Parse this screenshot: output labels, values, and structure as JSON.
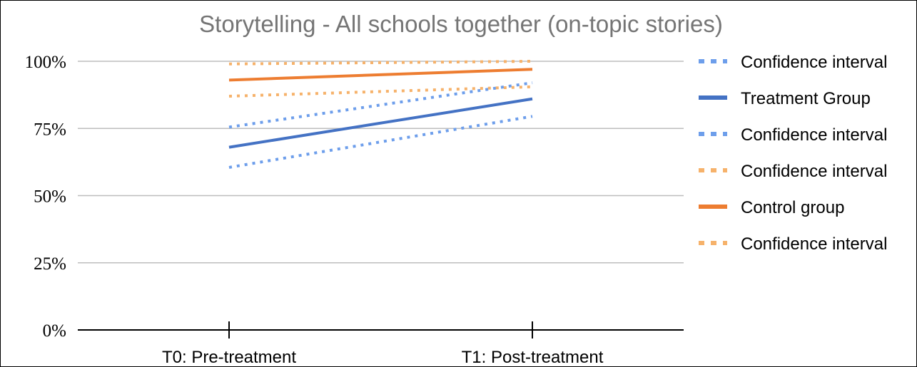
{
  "chart_data": {
    "type": "line",
    "title": "Storytelling - All schools together (on-topic stories)",
    "xlabel": "",
    "ylabel": "",
    "categories": [
      "T0: Pre-treatment",
      "T1: Post-treatment"
    ],
    "yticks": [
      "0%",
      "25%",
      "50%",
      "75%",
      "100%"
    ],
    "ylim": [
      0,
      100
    ],
    "grid": true,
    "legend_position": "right",
    "series": [
      {
        "name": "Confidence interval",
        "values": [
          75.5,
          92
        ],
        "color": "#6d9eeb",
        "style": "dotted"
      },
      {
        "name": "Treatment Group",
        "values": [
          68,
          86
        ],
        "color": "#4472c4",
        "style": "solid"
      },
      {
        "name": "Confidence interval",
        "values": [
          60.5,
          79.5
        ],
        "color": "#6d9eeb",
        "style": "dotted"
      },
      {
        "name": "Confidence interval",
        "values": [
          87,
          90.5
        ],
        "color": "#f6b26b",
        "style": "dotted"
      },
      {
        "name": "Control group",
        "values": [
          93,
          97
        ],
        "color": "#ed7d31",
        "style": "solid"
      },
      {
        "name": "Confidence interval",
        "values": [
          99,
          100
        ],
        "color": "#f6b26b",
        "style": "dotted"
      }
    ]
  }
}
